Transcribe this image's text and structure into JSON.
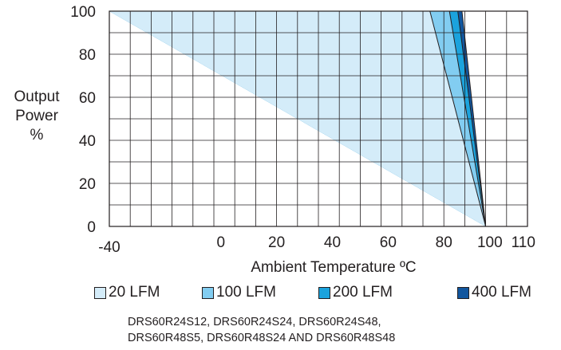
{
  "chart_data": {
    "type": "area",
    "title": "",
    "xlabel": "Ambient Temperature ºC",
    "ylabel": [
      "Output",
      "Power",
      "%"
    ],
    "xlim": [
      -40,
      110
    ],
    "ylim": [
      0,
      100
    ],
    "x_tick_labels": [
      "-40",
      "0",
      "20",
      "40",
      "60",
      "80",
      "100",
      "110"
    ],
    "x_tick_values": [
      -40,
      0,
      20,
      40,
      60,
      80,
      100,
      110
    ],
    "y_tick_labels": [
      "0",
      "20",
      "40",
      "60",
      "80",
      "100"
    ],
    "y_tick_values": [
      0,
      20,
      40,
      60,
      80,
      100
    ],
    "grid": true,
    "series": [
      {
        "name": "20 LFM",
        "color": "#d4ecf9",
        "points": [
          [
            -40,
            100
          ],
          [
            75,
            100
          ],
          [
            95,
            0
          ]
        ]
      },
      {
        "name": "100 LFM",
        "color": "#82cdf1",
        "points": [
          [
            -40,
            100
          ],
          [
            82,
            100
          ],
          [
            95,
            0
          ]
        ]
      },
      {
        "name": "200 LFM",
        "color": "#1ba3dd",
        "points": [
          [
            -40,
            100
          ],
          [
            85,
            100
          ],
          [
            95,
            0
          ]
        ]
      },
      {
        "name": "400 LFM",
        "color": "#12579f",
        "points": [
          [
            -40,
            100
          ],
          [
            86.5,
            100
          ],
          [
            95,
            0
          ]
        ]
      }
    ],
    "legend_position": "bottom",
    "notes": [
      "DRS60R24S12, DRS60R24S24, DRS60R24S48,",
      "DRS60R48S5,  DRS60R48S24 AND DRS60R48S48"
    ]
  }
}
